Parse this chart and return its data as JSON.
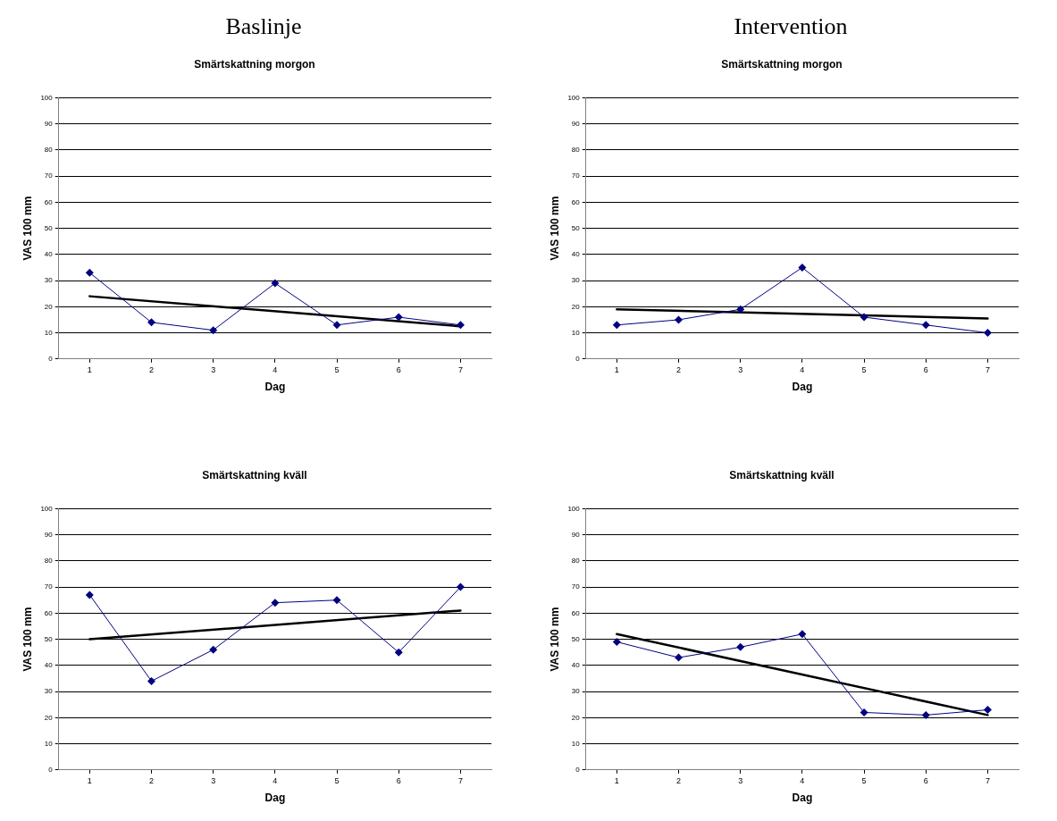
{
  "chart_data": [
    {
      "type": "line",
      "annotations": [
        "Baslinje"
      ],
      "title": "Smärtskattning morgon",
      "xlabel": "Dag",
      "ylabel": "VAS 100 mm",
      "x": [
        1,
        2,
        3,
        4,
        5,
        6,
        7
      ],
      "xlim": [
        0.5,
        7.5
      ],
      "xticks": [
        1,
        2,
        3,
        4,
        5,
        6,
        7
      ],
      "ylim": [
        0,
        100
      ],
      "yticks": [
        0,
        10,
        20,
        30,
        40,
        50,
        60,
        70,
        80,
        90,
        100
      ],
      "grid": "y",
      "marker": "diamond",
      "series": [
        {
          "color": "#000080",
          "values": [
            33,
            14,
            11,
            29,
            13,
            16,
            13
          ]
        },
        {
          "type": "line",
          "color": "#000000",
          "marker": "none",
          "values": [
            24,
            null,
            null,
            null,
            null,
            null,
            12.5
          ]
        }
      ]
    },
    {
      "type": "line",
      "annotations": [
        "Intervention"
      ],
      "title": "Smärtskattning morgon",
      "xlabel": "Dag",
      "ylabel": "VAS 100 mm",
      "x": [
        1,
        2,
        3,
        4,
        5,
        6,
        7
      ],
      "xlim": [
        0.5,
        7.5
      ],
      "xticks": [
        1,
        2,
        3,
        4,
        5,
        6,
        7
      ],
      "ylim": [
        0,
        100
      ],
      "yticks": [
        0,
        10,
        20,
        30,
        40,
        50,
        60,
        70,
        80,
        90,
        100
      ],
      "grid": "y",
      "marker": "diamond",
      "series": [
        {
          "color": "#000080",
          "values": [
            13,
            15,
            19,
            35,
            16,
            13,
            10
          ]
        },
        {
          "type": "line",
          "color": "#000000",
          "marker": "none",
          "values": [
            19,
            null,
            null,
            null,
            null,
            null,
            15.5
          ]
        }
      ]
    },
    {
      "type": "line",
      "title": "Smärtskattning kväll",
      "xlabel": "Dag",
      "ylabel": "VAS 100 mm",
      "x": [
        1,
        2,
        3,
        4,
        5,
        6,
        7
      ],
      "xlim": [
        0.5,
        7.5
      ],
      "xticks": [
        1,
        2,
        3,
        4,
        5,
        6,
        7
      ],
      "ylim": [
        0,
        100
      ],
      "yticks": [
        0,
        10,
        20,
        30,
        40,
        50,
        60,
        70,
        80,
        90,
        100
      ],
      "grid": "y",
      "marker": "diamond",
      "series": [
        {
          "color": "#000080",
          "values": [
            67,
            34,
            46,
            64,
            65,
            45,
            70
          ]
        },
        {
          "type": "line",
          "color": "#000000",
          "marker": "none",
          "values": [
            50,
            null,
            null,
            null,
            null,
            null,
            61
          ]
        }
      ]
    },
    {
      "type": "line",
      "title": "Smärtskattning kväll",
      "xlabel": "Dag",
      "ylabel": "VAS 100 mm",
      "x": [
        1,
        2,
        3,
        4,
        5,
        6,
        7
      ],
      "xlim": [
        0.5,
        7.5
      ],
      "xticks": [
        1,
        2,
        3,
        4,
        5,
        6,
        7
      ],
      "ylim": [
        0,
        100
      ],
      "yticks": [
        0,
        10,
        20,
        30,
        40,
        50,
        60,
        70,
        80,
        90,
        100
      ],
      "grid": "y",
      "marker": "diamond",
      "series": [
        {
          "color": "#000080",
          "values": [
            49,
            43,
            47,
            52,
            22,
            21,
            23
          ]
        },
        {
          "type": "line",
          "color": "#000000",
          "marker": "none",
          "values": [
            52,
            null,
            null,
            null,
            null,
            null,
            21
          ]
        }
      ]
    }
  ]
}
